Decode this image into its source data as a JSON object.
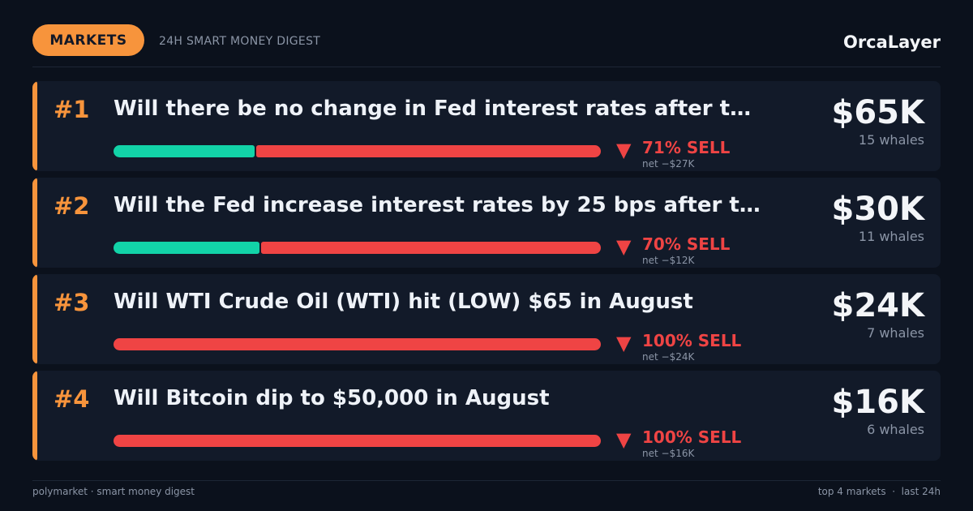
{
  "header": {
    "badge": "MARKETS",
    "subtitle": "24H SMART MONEY DIGEST",
    "brand": "OrcaLayer"
  },
  "colors": {
    "accent": "#f7943c",
    "buy": "#12d3a8",
    "sell": "#ef4444",
    "background": "#0b111c",
    "card": "#121a29"
  },
  "markets": [
    {
      "rank": "#1",
      "title": "Will there be no change in Fed interest rates after t…",
      "buy_fraction": 0.29,
      "sell_label": "71% SELL",
      "net": "net −$27K",
      "amount": "$65K",
      "whales": "15 whales"
    },
    {
      "rank": "#2",
      "title": "Will the Fed increase interest rates by 25 bps after t…",
      "buy_fraction": 0.3,
      "sell_label": "70% SELL",
      "net": "net −$12K",
      "amount": "$30K",
      "whales": "11 whales"
    },
    {
      "rank": "#3",
      "title": "Will WTI Crude Oil (WTI) hit (LOW) $65 in August",
      "buy_fraction": 0,
      "sell_label": "100% SELL",
      "net": "net −$24K",
      "amount": "$24K",
      "whales": "7 whales"
    },
    {
      "rank": "#4",
      "title": "Will Bitcoin dip to $50,000 in August",
      "buy_fraction": 0,
      "sell_label": "100% SELL",
      "net": "net −$16K",
      "amount": "$16K",
      "whales": "6 whales"
    }
  ],
  "footer": {
    "left": "polymarket · smart money digest",
    "right": "top 4 markets  ·  last 24h"
  }
}
